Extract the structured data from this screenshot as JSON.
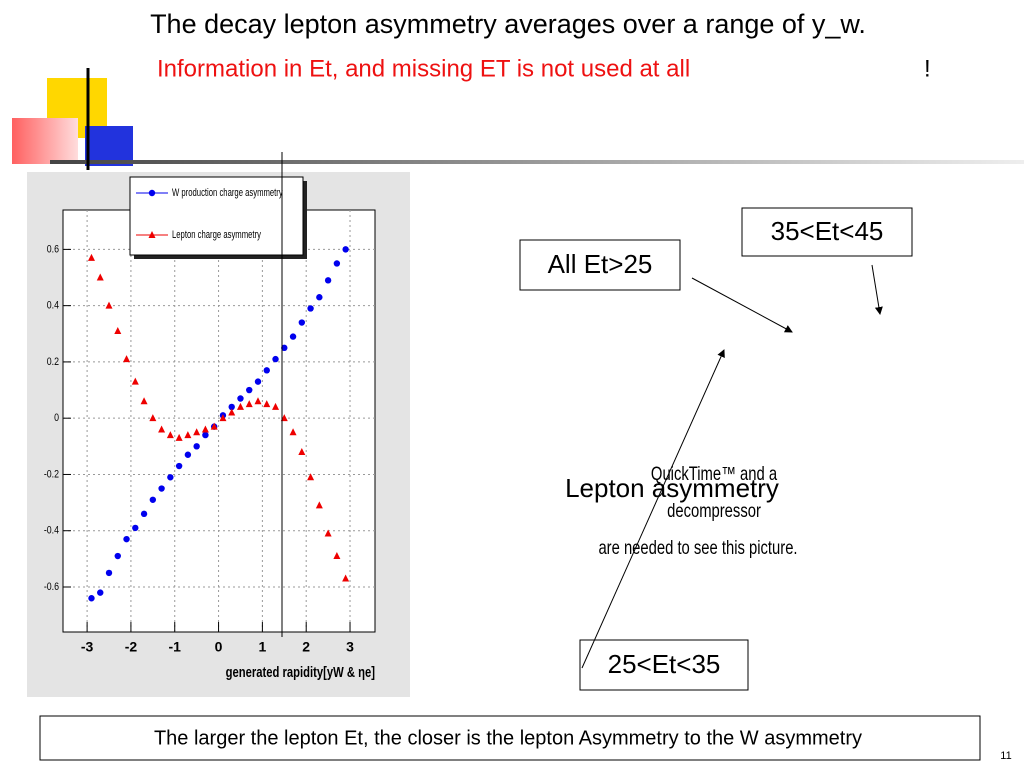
{
  "slide": {
    "title": "The decay lepton asymmetry averages over a range of y_w.",
    "subtitle": "Information in Et, and missing ET is not used at all",
    "subtitle_end": "!",
    "labels": [
      "35<Et<45",
      "All Et>25",
      "25<Et<35",
      "Lepton asymmetry"
    ],
    "placeholder": [
      "QuickTime™ and a",
      "decompressor",
      "are needed to see this picture."
    ],
    "footer": "The larger the  lepton Et, the  closer is the lepton Asymmetry to the W asymmetry",
    "page": "11"
  },
  "chart_data": {
    "type": "scatter",
    "x_label": "generated rapidity[yW & ηe]",
    "x": [
      -2.9,
      -2.7,
      -2.5,
      -2.3,
      -2.1,
      -1.9,
      -1.7,
      -1.5,
      -1.3,
      -1.1,
      -0.9,
      -0.7,
      -0.5,
      -0.3,
      -0.1,
      0.1,
      0.3,
      0.5,
      0.7,
      0.9,
      1.1,
      1.3,
      1.5,
      1.7,
      1.9,
      2.1,
      2.3,
      2.5,
      2.7,
      2.9
    ],
    "series": [
      {
        "name": "W production charge asymmetry",
        "color": "#0000ee",
        "marker": "circle",
        "values": [
          -0.64,
          -0.62,
          -0.55,
          -0.49,
          -0.43,
          -0.39,
          -0.34,
          -0.29,
          -0.25,
          -0.21,
          -0.17,
          -0.13,
          -0.1,
          -0.06,
          -0.03,
          0.01,
          0.04,
          0.07,
          0.1,
          0.13,
          0.17,
          0.21,
          0.25,
          0.29,
          0.34,
          0.39,
          0.43,
          0.49,
          0.55,
          0.6
        ]
      },
      {
        "name": "Lepton charge asymmetry",
        "color": "#ee0000",
        "marker": "triangle",
        "values": [
          0.57,
          0.5,
          0.4,
          0.31,
          0.21,
          0.13,
          0.06,
          0.0,
          -0.04,
          -0.06,
          -0.07,
          -0.06,
          -0.05,
          -0.04,
          -0.03,
          0.0,
          0.02,
          0.04,
          0.05,
          0.06,
          0.05,
          0.04,
          0.0,
          -0.05,
          -0.12,
          -0.21,
          -0.31,
          -0.41,
          -0.49,
          -0.57
        ]
      }
    ],
    "xlim": [
      -3.55,
      3.57
    ],
    "ylim": [
      -0.76,
      0.74
    ],
    "xticks": [
      -3,
      -2,
      -1,
      0,
      1,
      2,
      3
    ],
    "yticks": [
      -0.6,
      -0.4,
      -0.2,
      0,
      0.2,
      0.4,
      0.6
    ],
    "grid": true
  }
}
